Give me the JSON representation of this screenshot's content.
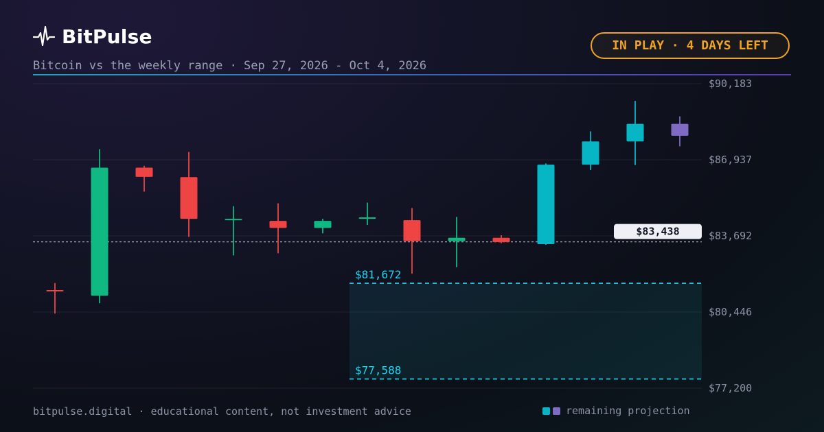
{
  "brand": {
    "name": "BitPulse"
  },
  "subtitle": "Bitcoin vs the weekly range · Sep 27, 2026 - Oct 4, 2026",
  "badge": "IN PLAY · 4 DAYS LEFT",
  "footer": "bitpulse.digital · educational content, not investment advice",
  "legend": {
    "label": "remaining projection"
  },
  "colors": {
    "up": "#10b981",
    "down": "#ef4444",
    "projection": "#06b6c4",
    "projection_alt": "#7f6ac4",
    "range": "#22d3ee",
    "badge": "#f0a324"
  },
  "chart_data": {
    "type": "candlestick",
    "y_ticks": [
      {
        "value": 90183,
        "label": "$90,183"
      },
      {
        "value": 86937,
        "label": "$86,937"
      },
      {
        "value": 83692,
        "label": "$83,692"
      },
      {
        "value": 80446,
        "label": "$80,446"
      },
      {
        "value": 77200,
        "label": "$77,200"
      }
    ],
    "ylim": [
      77200,
      90183
    ],
    "grid": true,
    "current_price": {
      "value": 83438,
      "label": "$83,438"
    },
    "range": {
      "upper": {
        "value": 81672,
        "label": "$81,672"
      },
      "lower": {
        "value": 77588,
        "label": "$77,588"
      }
    },
    "candles": [
      {
        "open": 81380,
        "high": 81680,
        "low": 80380,
        "close": 81380,
        "kind": "down"
      },
      {
        "open": 81140,
        "high": 87390,
        "low": 80820,
        "close": 86600,
        "kind": "up"
      },
      {
        "open": 86600,
        "high": 86680,
        "low": 85580,
        "close": 86210,
        "kind": "down"
      },
      {
        "open": 86200,
        "high": 87270,
        "low": 83650,
        "close": 84420,
        "kind": "down"
      },
      {
        "open": 84420,
        "high": 84960,
        "low": 82860,
        "close": 84420,
        "kind": "up"
      },
      {
        "open": 84330,
        "high": 85080,
        "low": 82950,
        "close": 84030,
        "kind": "down"
      },
      {
        "open": 84030,
        "high": 84420,
        "low": 83800,
        "close": 84330,
        "kind": "up"
      },
      {
        "open": 84420,
        "high": 85110,
        "low": 84160,
        "close": 84480,
        "kind": "up"
      },
      {
        "open": 84360,
        "high": 84880,
        "low": 82080,
        "close": 83470,
        "kind": "down"
      },
      {
        "open": 83470,
        "high": 84500,
        "low": 82360,
        "close": 83610,
        "kind": "up"
      },
      {
        "open": 83610,
        "high": 83720,
        "low": 83380,
        "close": 83430,
        "kind": "down"
      },
      {
        "open": 83340,
        "high": 86780,
        "low": 83310,
        "close": 86730,
        "kind": "projection"
      },
      {
        "open": 86730,
        "high": 88150,
        "low": 86500,
        "close": 87720,
        "kind": "projection"
      },
      {
        "open": 87720,
        "high": 89450,
        "low": 86710,
        "close": 88470,
        "kind": "projection"
      },
      {
        "open": 88470,
        "high": 88790,
        "low": 87510,
        "close": 87960,
        "kind": "projection_alt"
      }
    ]
  }
}
